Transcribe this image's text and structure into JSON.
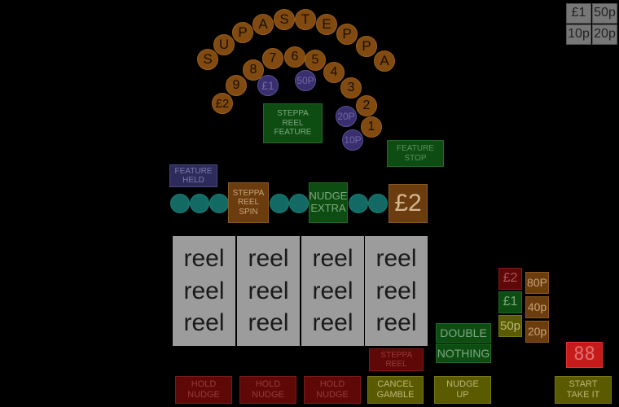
{
  "title_letters": [
    "S",
    "U",
    "P",
    "A",
    "S",
    "T",
    "E",
    "P",
    "P",
    "A"
  ],
  "steppa_numbers": [
    "£2",
    "9",
    "8",
    "7",
    "6",
    "5",
    "4",
    "3",
    "2",
    "1"
  ],
  "purple_coins": [
    "£1",
    "50P",
    "20P",
    "10P"
  ],
  "coin_selector": [
    "£1",
    "50p",
    "10p",
    "20p"
  ],
  "labels": {
    "steppa_reel_feature": "STEPPA REEL FEATURE",
    "feature_stop": "FEATURE STOP",
    "feature_held": "FEATURE HELD",
    "steppa_reel_spin": "STEPPA REEL SPIN",
    "nudge_extra": "NUDGE EXTRA",
    "jackpot": "£2",
    "double": "DOUBLE",
    "nothing": "NOTHING",
    "steppa_reel": "STEPPA REEL"
  },
  "reels": [
    [
      "reel",
      "reel",
      "reel"
    ],
    [
      "reel",
      "reel",
      "reel"
    ],
    [
      "reel",
      "reel",
      "reel"
    ],
    [
      "reel",
      "reel",
      "reel"
    ]
  ],
  "gamble_ladder_left": [
    "£2",
    "£1",
    "50p"
  ],
  "gamble_ladder_right": [
    "80P",
    "40p",
    "20p"
  ],
  "credit_display": "88",
  "buttons": {
    "hold1": "HOLD NUDGE",
    "hold2": "HOLD NUDGE",
    "hold3": "HOLD NUDGE",
    "cancel": "CANCEL GAMBLE",
    "nudge_up": "NUDGE UP",
    "start": "START TAKE IT"
  },
  "colors": {
    "orange": "#804a10",
    "purple": "#3a2f6e",
    "teal": "#136a64",
    "green": "#0d4d12",
    "red": "#5e0808",
    "yellow": "#5a5a00",
    "reel": "#9c9c9c"
  }
}
